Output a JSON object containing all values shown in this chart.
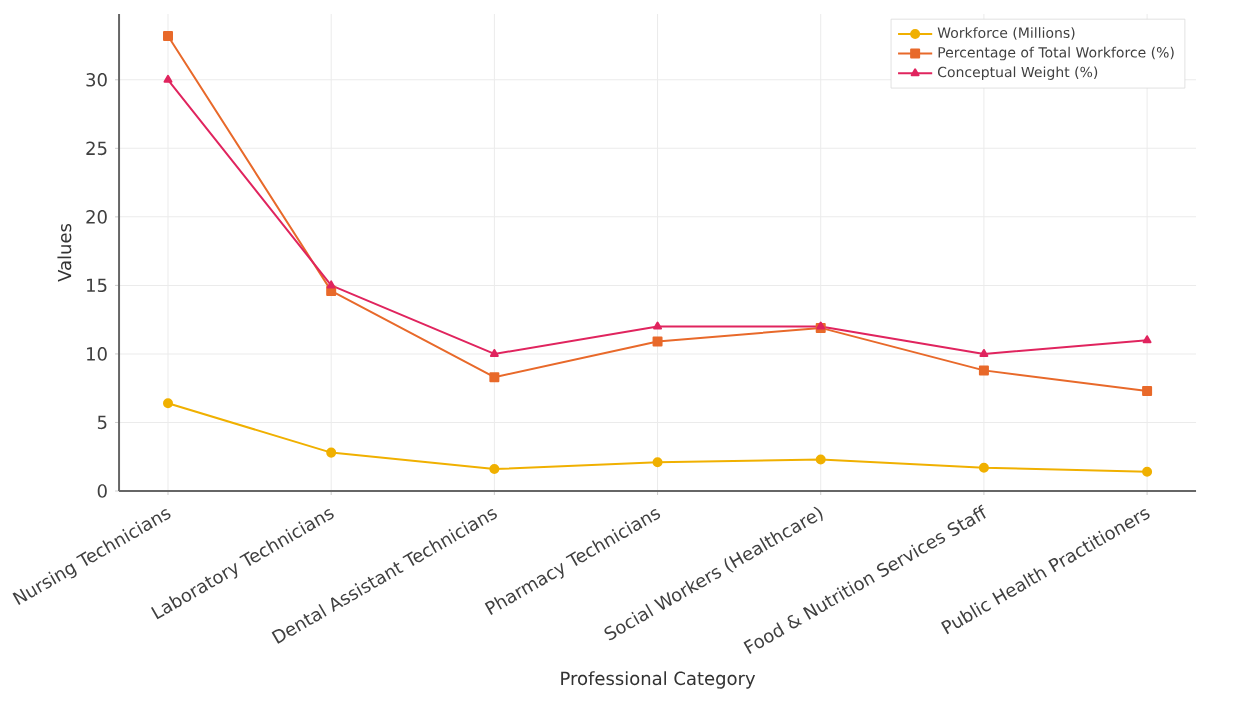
{
  "chart_data": {
    "type": "line",
    "xlabel": "Professional Category",
    "ylabel": "Values",
    "categories": [
      "Nursing Technicians",
      "Laboratory Technicians",
      "Dental Assistant Technicians",
      "Pharmacy Technicians",
      "Social Workers (Healthcare)",
      "Food & Nutrition Services Staff",
      "Public Health Practitioners"
    ],
    "series": [
      {
        "name": "Workforce (Millions)",
        "color": "#f0b000",
        "marker": "circle",
        "values": [
          6.4,
          2.8,
          1.6,
          2.1,
          2.3,
          1.7,
          1.4
        ]
      },
      {
        "name": "Percentage of Total Workforce (%)",
        "color": "#e8692a",
        "marker": "square",
        "values": [
          33.2,
          14.6,
          8.3,
          10.9,
          11.9,
          8.8,
          7.3
        ]
      },
      {
        "name": "Conceptual Weight (%)",
        "color": "#e0245e",
        "marker": "triangle",
        "values": [
          30,
          15,
          10,
          12,
          12,
          10,
          11
        ]
      }
    ],
    "ylim": [
      0,
      34.8
    ],
    "yticks": [
      0,
      5,
      10,
      15,
      20,
      25,
      30
    ],
    "grid": true,
    "legend": "top right",
    "line_style": "solid"
  }
}
